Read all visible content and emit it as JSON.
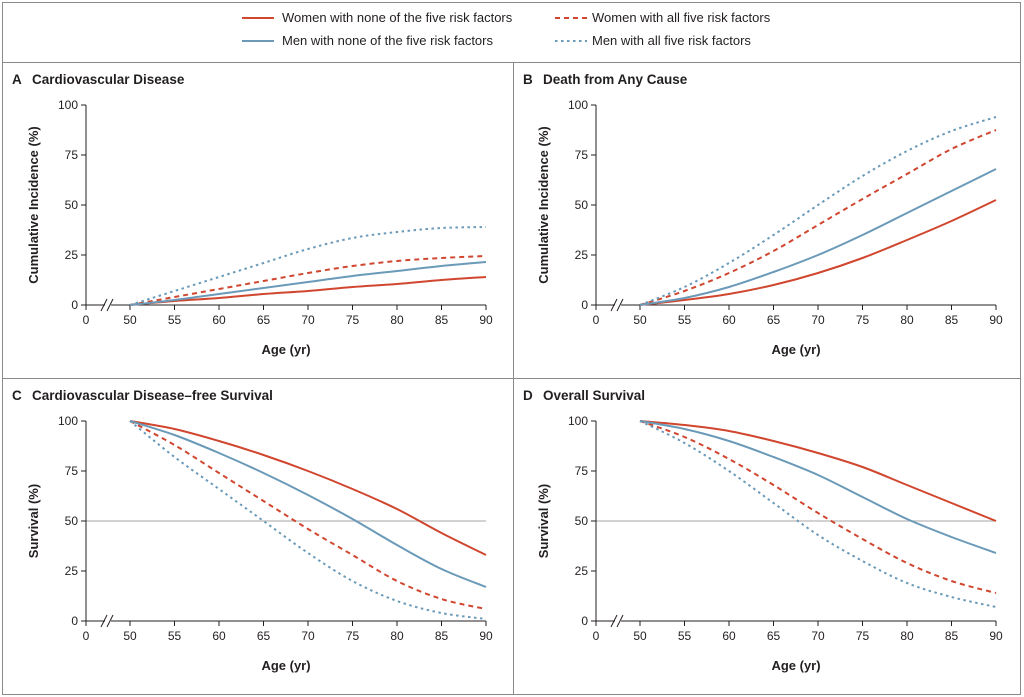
{
  "colors": {
    "women": "#d0462f",
    "men": "#6a9ab8",
    "border": "#8a8a8a",
    "axis": "#231f20",
    "reference_line": "#b7b7b7"
  },
  "legend": {
    "items": [
      {
        "label": "Women with none of the five risk factors",
        "series": "women_none"
      },
      {
        "label": "Women with all five risk factors",
        "series": "women_all"
      },
      {
        "label": "Men with none of the five risk factors",
        "series": "men_none"
      },
      {
        "label": "Men with all five risk factors",
        "series": "men_all"
      }
    ]
  },
  "chart_data": [
    {
      "type": "line",
      "panel_letter": "A",
      "title": "Cardiovascular Disease",
      "xlabel": "Age (yr)",
      "ylabel": "Cumulative Incidence (%)",
      "xlim": [
        0,
        90
      ],
      "x_axis_break": true,
      "ylim": [
        0,
        100
      ],
      "xticks": [
        0,
        50,
        55,
        60,
        65,
        70,
        75,
        80,
        85,
        90
      ],
      "yticks": [
        0,
        25,
        50,
        75,
        100
      ],
      "reference_line": null,
      "x": [
        50,
        55,
        60,
        65,
        70,
        75,
        80,
        85,
        90
      ],
      "series": [
        {
          "name": "Women with none of the five risk factors",
          "key": "women_none",
          "style": "solid",
          "values": [
            0,
            2,
            3.5,
            5.5,
            7,
            9,
            10.5,
            12.5,
            14
          ]
        },
        {
          "name": "Women with all five risk factors",
          "key": "women_all",
          "style": "dashed",
          "values": [
            0,
            4,
            8,
            12,
            16,
            19.5,
            22,
            23.5,
            24.5
          ]
        },
        {
          "name": "Men with none of the five risk factors",
          "key": "men_none",
          "style": "solid",
          "values": [
            0,
            2.5,
            5.5,
            8.5,
            11.5,
            14.5,
            17,
            19.5,
            21.5
          ]
        },
        {
          "name": "Men with all five risk factors",
          "key": "men_all",
          "style": "dotted",
          "values": [
            0,
            7,
            14,
            21,
            28,
            33.5,
            36.5,
            38.5,
            39
          ]
        }
      ]
    },
    {
      "type": "line",
      "panel_letter": "B",
      "title": "Death from Any Cause",
      "xlabel": "Age (yr)",
      "ylabel": "Cumulative Incidence (%)",
      "xlim": [
        0,
        90
      ],
      "x_axis_break": true,
      "ylim": [
        0,
        100
      ],
      "xticks": [
        0,
        50,
        55,
        60,
        65,
        70,
        75,
        80,
        85,
        90
      ],
      "yticks": [
        0,
        25,
        50,
        75,
        100
      ],
      "reference_line": null,
      "x": [
        50,
        55,
        60,
        65,
        70,
        75,
        80,
        85,
        90
      ],
      "series": [
        {
          "name": "Women with none of the five risk factors",
          "key": "women_none",
          "style": "solid",
          "values": [
            0,
            2.5,
            5.5,
            10,
            16,
            23.5,
            32.5,
            42,
            52.5
          ]
        },
        {
          "name": "Women with all five risk factors",
          "key": "women_all",
          "style": "dashed",
          "values": [
            0,
            7,
            16,
            27,
            40,
            53,
            65.5,
            78,
            87.5
          ]
        },
        {
          "name": "Men with none of the five risk factors",
          "key": "men_none",
          "style": "solid",
          "values": [
            0,
            3.5,
            9,
            16.5,
            25,
            35,
            46,
            57,
            68
          ]
        },
        {
          "name": "Men with all five risk factors",
          "key": "men_all",
          "style": "dotted",
          "values": [
            0,
            9,
            21,
            35,
            50,
            64.5,
            77,
            87,
            94
          ]
        }
      ]
    },
    {
      "type": "line",
      "panel_letter": "C",
      "title": "Cardiovascular Disease–free Survival",
      "xlabel": "Age (yr)",
      "ylabel": "Survival (%)",
      "xlim": [
        0,
        90
      ],
      "x_axis_break": true,
      "ylim": [
        0,
        100
      ],
      "xticks": [
        0,
        50,
        55,
        60,
        65,
        70,
        75,
        80,
        85,
        90
      ],
      "yticks": [
        0,
        25,
        50,
        75,
        100
      ],
      "reference_line": 50,
      "x": [
        50,
        55,
        60,
        65,
        70,
        75,
        80,
        85,
        90
      ],
      "series": [
        {
          "name": "Women with none of the five risk factors",
          "key": "women_none",
          "style": "solid",
          "values": [
            100,
            96,
            90,
            83,
            75,
            66,
            56,
            44,
            33
          ]
        },
        {
          "name": "Women with all five risk factors",
          "key": "women_all",
          "style": "dashed",
          "values": [
            100,
            88,
            74,
            60,
            46,
            33,
            20,
            11,
            6
          ]
        },
        {
          "name": "Men with none of the five risk factors",
          "key": "men_none",
          "style": "solid",
          "values": [
            100,
            93,
            84,
            74,
            63,
            51,
            38,
            26,
            17
          ]
        },
        {
          "name": "Men with all five risk factors",
          "key": "men_all",
          "style": "dotted",
          "values": [
            100,
            82,
            66,
            50,
            34,
            20,
            10,
            4,
            1
          ]
        }
      ]
    },
    {
      "type": "line",
      "panel_letter": "D",
      "title": "Overall Survival",
      "xlabel": "Age (yr)",
      "ylabel": "Survival (%)",
      "xlim": [
        0,
        90
      ],
      "x_axis_break": true,
      "ylim": [
        0,
        100
      ],
      "xticks": [
        0,
        50,
        55,
        60,
        65,
        70,
        75,
        80,
        85,
        90
      ],
      "yticks": [
        0,
        25,
        50,
        75,
        100
      ],
      "reference_line": 50,
      "x": [
        50,
        55,
        60,
        65,
        70,
        75,
        80,
        85,
        90
      ],
      "series": [
        {
          "name": "Women with none of the five risk factors",
          "key": "women_none",
          "style": "solid",
          "values": [
            100,
            98,
            95,
            90,
            84,
            77,
            68,
            59,
            50
          ]
        },
        {
          "name": "Women with all five risk factors",
          "key": "women_all",
          "style": "dashed",
          "values": [
            100,
            92,
            81,
            68,
            54,
            41,
            29,
            20,
            14
          ]
        },
        {
          "name": "Men with none of the five risk factors",
          "key": "men_none",
          "style": "solid",
          "values": [
            100,
            96,
            90,
            82,
            73,
            62,
            51,
            42,
            34
          ]
        },
        {
          "name": "Men with all five risk factors",
          "key": "men_all",
          "style": "dotted",
          "values": [
            100,
            89,
            75,
            59,
            43,
            30,
            19,
            12,
            7
          ]
        }
      ]
    }
  ]
}
